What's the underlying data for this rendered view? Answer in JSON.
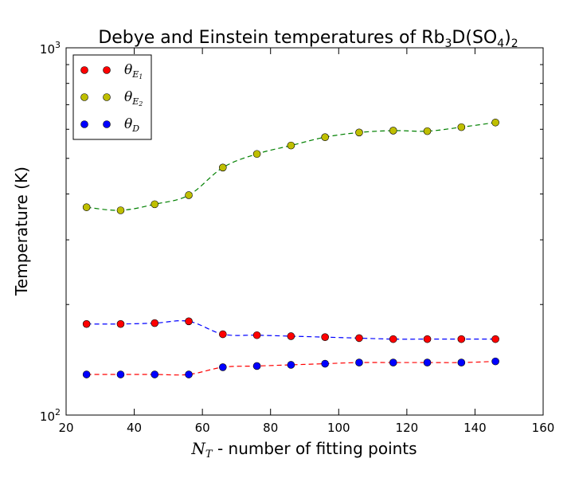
{
  "chart_data": {
    "type": "line",
    "title": "Debye and Einstein temperatures of Rb",
    "title_parts": {
      "sub1": "3",
      "mid": "D(SO",
      "sub2": "4",
      "close": ")",
      "sub3": "2"
    },
    "xlabel": "N",
    "xlabel_sub": "T",
    "xlabel_rest": " - number of fitting points",
    "ylabel": "Temperature (K)",
    "xlim": [
      20,
      160
    ],
    "ylim": [
      100,
      1000
    ],
    "yscale": "log",
    "grid": false,
    "legend_position": "top-left",
    "x_ticks": [
      "20",
      "40",
      "60",
      "80",
      "100",
      "120",
      "140",
      "160"
    ],
    "y_tick_base": "10",
    "y_tick_exps": [
      "2",
      "3"
    ],
    "x": [
      26,
      36,
      46,
      56,
      66,
      76,
      86,
      96,
      106,
      116,
      126,
      136,
      146
    ],
    "series": [
      {
        "name": "θ",
        "name_sub": "E",
        "name_subsub": "1",
        "marker_color": "#ff0000",
        "line_color": "#0000ff",
        "values": [
          177,
          177,
          178,
          180,
          166,
          165,
          164,
          163,
          162,
          161,
          161,
          161,
          161
        ]
      },
      {
        "name": "θ",
        "name_sub": "E",
        "name_subsub": "2",
        "marker_color": "#bfbf00",
        "line_color": "#008000",
        "values": [
          368,
          361,
          375,
          397,
          472,
          514,
          542,
          571,
          588,
          595,
          593,
          608,
          626
        ]
      },
      {
        "name": "θ",
        "name_sub": "D",
        "name_subsub": "",
        "marker_color": "#0000ff",
        "line_color": "#ff0000",
        "values": [
          129,
          129,
          129,
          129,
          135,
          136,
          137,
          138,
          139,
          139,
          139,
          139,
          140
        ]
      }
    ]
  }
}
